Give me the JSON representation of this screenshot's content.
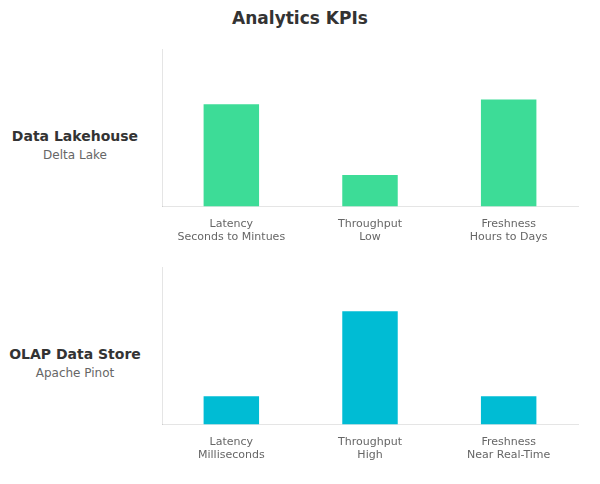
{
  "title": "Analytics KPIs",
  "chart_data": [
    {
      "type": "bar",
      "title": "Data Lakehouse",
      "subtitle": "Delta Lake",
      "categories": [
        "Latency",
        "Throughput",
        "Freshness"
      ],
      "values": [
        0.65,
        0.2,
        0.68
      ],
      "color": "#3ddc97",
      "annotations": [
        {
          "x": "Latency",
          "text": "Seconds to Mintues"
        },
        {
          "x": "Throughput",
          "text": "Low"
        },
        {
          "x": "Freshness",
          "text": "Hours to Days"
        }
      ],
      "ylim": [
        0,
        1
      ],
      "yticks": [],
      "grid": false,
      "tick_labels": "x"
    },
    {
      "type": "bar",
      "title": "OLAP Data Store",
      "subtitle": "Apache Pinot",
      "categories": [
        "Latency",
        "Throughput",
        "Freshness"
      ],
      "values": [
        0.18,
        0.72,
        0.18
      ],
      "color": "#00bcd4",
      "annotations": [
        {
          "x": "Latency",
          "text": "Milliseconds"
        },
        {
          "x": "Throughput",
          "text": "High"
        },
        {
          "x": "Freshness",
          "text": "Near Real-Time"
        }
      ],
      "ylim": [
        0,
        1
      ],
      "yticks": [],
      "grid": false,
      "tick_labels": "x"
    }
  ]
}
